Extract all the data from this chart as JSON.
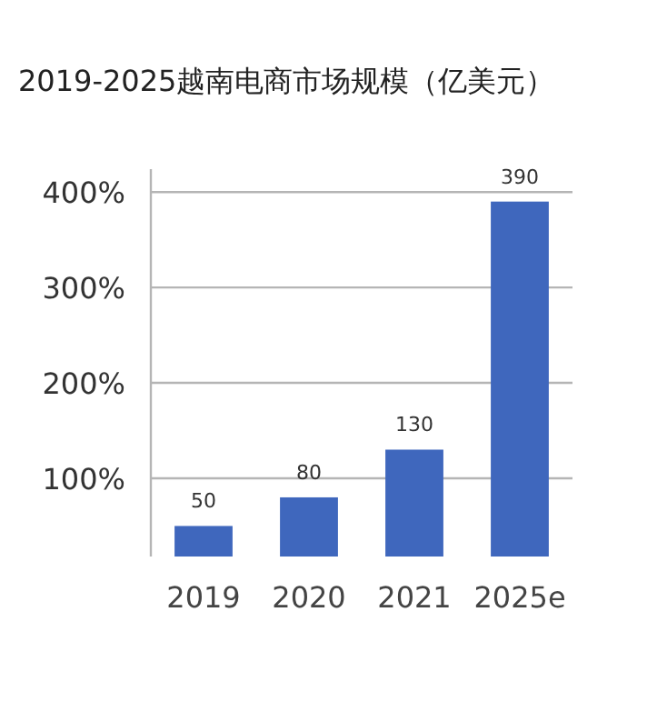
{
  "chart_data": {
    "type": "bar",
    "title": "2019-2025越南电商市场规模（亿美元）",
    "categories": [
      "2019",
      "2020",
      "2021",
      "2025e"
    ],
    "values": [
      50,
      80,
      130,
      390
    ],
    "color": "#3f67bd",
    "ylim": [
      18,
      424
    ],
    "yticks": [
      {
        "value": 100,
        "label": "100%"
      },
      {
        "value": 200,
        "label": "200%"
      },
      {
        "value": 300,
        "label": "300%"
      },
      {
        "value": 400,
        "label": "400%"
      }
    ],
    "grid": "y",
    "data_labels": true
  }
}
